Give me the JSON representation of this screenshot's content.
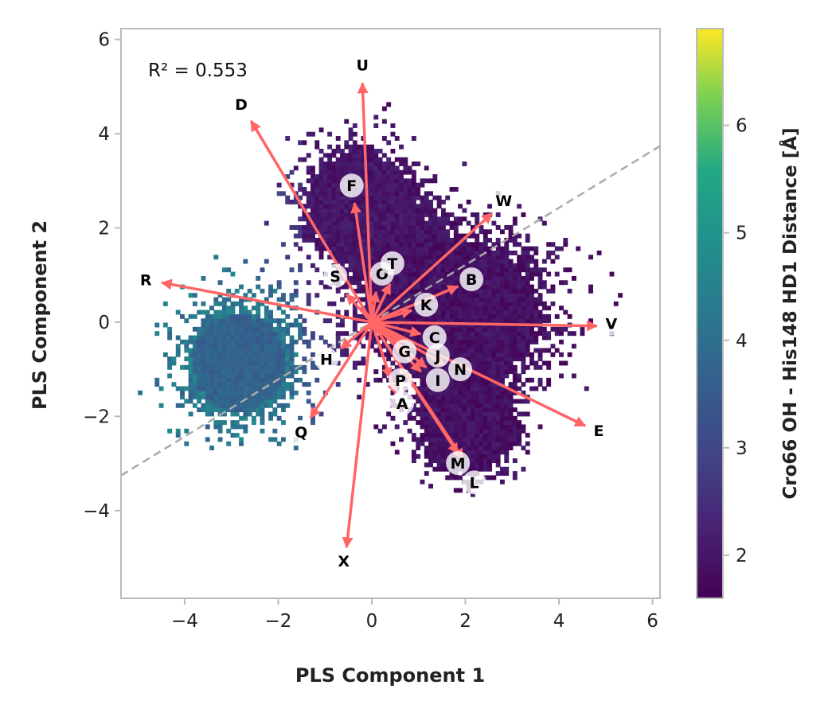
{
  "chart_data": {
    "type": "heatmap",
    "subtype": "pls-biplot",
    "xlabel": "PLS Component 1",
    "ylabel": "PLS Component 2",
    "xlim": [
      -5.36,
      6.16
    ],
    "ylim": [
      -5.86,
      6.23
    ],
    "xticks": [
      -4,
      -2,
      0,
      2,
      4,
      6
    ],
    "yticks": [
      -4,
      -2,
      0,
      2,
      4,
      6
    ],
    "xtick_labels": [
      "−4",
      "−2",
      "0",
      "2",
      "4",
      "6"
    ],
    "ytick_labels": [
      "−4",
      "−2",
      "0",
      "2",
      "4",
      "6"
    ],
    "annotation": "R² = 0.553",
    "colorbar": {
      "label": "Cro66 OH - His148 HD1 Distance [Å]",
      "range": [
        1.6,
        6.9
      ],
      "ticks": [
        2,
        3,
        4,
        5,
        6
      ],
      "tick_labels": [
        "2",
        "3",
        "4",
        "5",
        "6"
      ],
      "colormap": "viridis"
    },
    "regression_line": {
      "slope": 0.607,
      "intercept": 0.0,
      "style": "dashed",
      "color": "#aaaaaa"
    },
    "density_regions": [
      {
        "center": [
          1.8,
          0.2
        ],
        "spread": [
          2.6,
          2.2
        ],
        "value": 1.9
      },
      {
        "center": [
          -0.3,
          2.5
        ],
        "spread": [
          1.6,
          1.6
        ],
        "value": 2.0
      },
      {
        "center": [
          2.0,
          -2.4
        ],
        "spread": [
          1.3,
          1.2
        ],
        "value": 1.9
      },
      {
        "center": [
          -2.9,
          -0.9
        ],
        "spread": [
          1.6,
          1.7
        ],
        "value": 3.7
      }
    ],
    "arrow_color": "#ff6666",
    "loadings": [
      {
        "label": "U",
        "tip": [
          -0.2,
          5.07
        ],
        "label_pos": [
          -0.2,
          5.46
        ]
      },
      {
        "label": "D",
        "tip": [
          -2.58,
          4.27
        ],
        "label_pos": [
          -2.79,
          4.63
        ]
      },
      {
        "label": "F",
        "tip": [
          -0.37,
          2.53
        ],
        "label_pos": [
          -0.43,
          2.9
        ]
      },
      {
        "label": "W",
        "tip": [
          2.57,
          2.31
        ],
        "label_pos": [
          2.82,
          2.58
        ]
      },
      {
        "label": "R",
        "tip": [
          -4.49,
          0.84
        ],
        "label_pos": [
          -4.83,
          0.9
        ]
      },
      {
        "label": "S",
        "tip": [
          -0.54,
          0.59
        ],
        "label_pos": [
          -0.78,
          0.98
        ]
      },
      {
        "label": "O",
        "tip": [
          0.09,
          0.64
        ],
        "label_pos": [
          0.22,
          1.03
        ]
      },
      {
        "label": "T",
        "tip": [
          0.39,
          0.81
        ],
        "label_pos": [
          0.44,
          1.25
        ]
      },
      {
        "label": "B",
        "tip": [
          1.84,
          0.76
        ],
        "label_pos": [
          2.13,
          0.91
        ]
      },
      {
        "label": "K",
        "tip": [
          0.85,
          0.25
        ],
        "label_pos": [
          1.16,
          0.37
        ]
      },
      {
        "label": "V",
        "tip": [
          4.81,
          -0.08
        ],
        "label_pos": [
          5.12,
          -0.03
        ]
      },
      {
        "label": "C",
        "tip": [
          1.04,
          -0.25
        ],
        "label_pos": [
          1.34,
          -0.32
        ]
      },
      {
        "label": "G",
        "tip": [
          0.65,
          -0.42
        ],
        "label_pos": [
          0.7,
          -0.62
        ]
      },
      {
        "label": "J",
        "tip": [
          1.16,
          -0.96
        ],
        "label_pos": [
          1.41,
          -0.71
        ]
      },
      {
        "label": "I",
        "tip": [
          1.05,
          -1.05
        ],
        "label_pos": [
          1.41,
          -1.23
        ]
      },
      {
        "label": "N",
        "tip": [
          1.55,
          -0.9
        ],
        "label_pos": [
          1.89,
          -1.0
        ]
      },
      {
        "label": "H",
        "tip": [
          -0.66,
          -0.56
        ],
        "label_pos": [
          -0.97,
          -0.79
        ]
      },
      {
        "label": "P",
        "tip": [
          0.39,
          -1.18
        ],
        "label_pos": [
          0.61,
          -1.23
        ]
      },
      {
        "label": "A",
        "tip": [
          0.51,
          -1.52
        ],
        "label_pos": [
          0.65,
          -1.72
        ]
      },
      {
        "label": "Q",
        "tip": [
          -1.31,
          -2.03
        ],
        "label_pos": [
          -1.51,
          -2.33
        ]
      },
      {
        "label": "E",
        "tip": [
          4.56,
          -2.2
        ],
        "label_pos": [
          4.85,
          -2.3
        ]
      },
      {
        "label": "M",
        "tip": [
          1.84,
          -2.79
        ],
        "label_pos": [
          1.84,
          -2.99
        ]
      },
      {
        "label": "L",
        "tip": [
          1.95,
          -2.9
        ],
        "label_pos": [
          2.19,
          -3.4
        ]
      },
      {
        "label": "X",
        "tip": [
          -0.54,
          -4.78
        ],
        "label_pos": [
          -0.6,
          -5.07
        ]
      }
    ]
  }
}
